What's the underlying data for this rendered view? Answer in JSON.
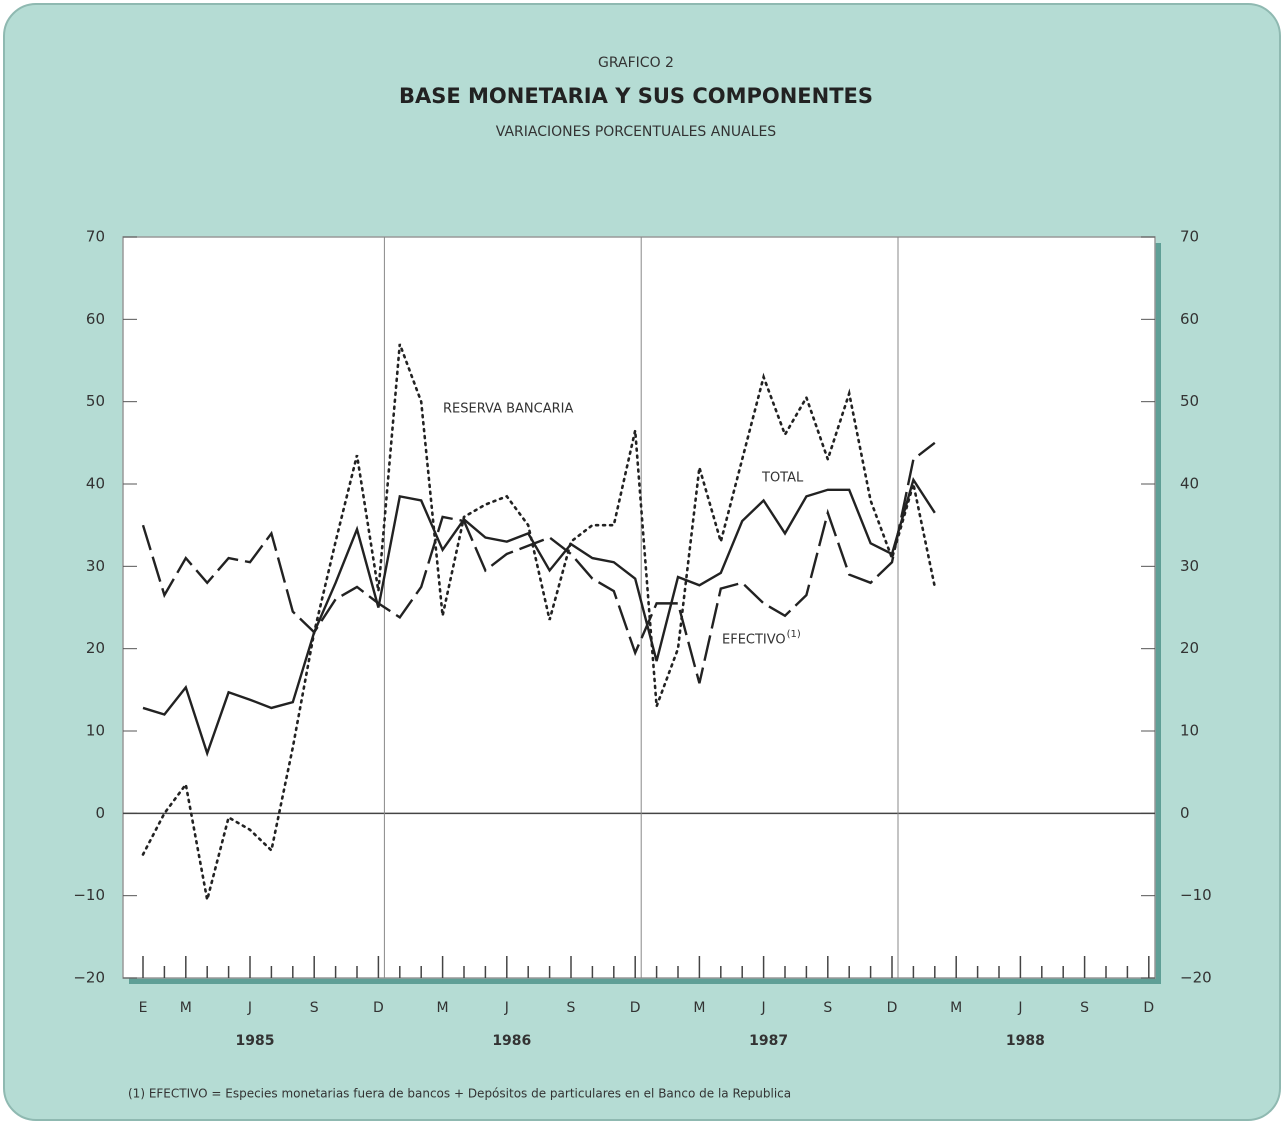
{
  "chart_data": {
    "type": "line",
    "supertitle": "GRAFICO 2",
    "title": "BASE MONETARIA Y SUS COMPONENTES",
    "subtitle": "VARIACIONES PORCENTUALES ANUALES",
    "categories": [
      "E",
      null,
      "M",
      null,
      null,
      "J",
      null,
      null,
      "S",
      null,
      null,
      "D",
      null,
      null,
      "M",
      null,
      null,
      "J",
      null,
      null,
      "S",
      null,
      null,
      "D",
      null,
      null,
      "M",
      null,
      null,
      "J",
      null,
      null,
      "S",
      null,
      null,
      "D",
      null,
      null,
      "M",
      null,
      null,
      "J",
      null,
      null,
      "S",
      null,
      null,
      "D"
    ],
    "year_labels": [
      "1985",
      "1986",
      "1987",
      "1988"
    ],
    "series": [
      {
        "name": "TOTAL",
        "color": "#222222",
        "style": "solid",
        "values": [
          12.8,
          12,
          15.3,
          7.3,
          14.7,
          13.8,
          12.8,
          13.5,
          22,
          28,
          34.5,
          25,
          38.5,
          38,
          32,
          35.7,
          33.5,
          33,
          34,
          29.5,
          32.7,
          31,
          30.5,
          28.5,
          18.5,
          28.7,
          27.7,
          29.2,
          35.5,
          38,
          34,
          38.5,
          39.3,
          39.3,
          32.8,
          31.5,
          40.5,
          36.5,
          null,
          null,
          null,
          null,
          null,
          null,
          null,
          null,
          null,
          null
        ]
      },
      {
        "name": "EFECTIVO",
        "color": "#222222",
        "style": "dashed",
        "values": [
          35,
          26.5,
          31,
          28,
          31,
          30.5,
          34,
          24.5,
          22,
          26,
          27.5,
          25.5,
          23.8,
          27.5,
          36,
          35.5,
          29.5,
          31.5,
          32.5,
          33.5,
          31.5,
          28.5,
          27,
          19.5,
          25.5,
          25.5,
          15.8,
          27.3,
          28,
          25.5,
          24,
          26.5,
          36.5,
          29,
          28,
          30.5,
          43,
          45,
          null,
          null,
          null,
          null,
          null,
          null,
          null,
          null,
          null,
          null
        ]
      },
      {
        "name": "RESERVA BANCARIA",
        "color": "#222222",
        "style": "dotted",
        "values": [
          -5,
          0,
          3.5,
          -10.5,
          -0.5,
          -2,
          -4.5,
          8,
          22,
          33,
          43.5,
          27,
          57,
          50,
          24,
          36,
          37.5,
          38.5,
          35,
          23.5,
          33,
          35,
          35,
          46.5,
          13,
          20,
          42,
          33,
          43,
          53,
          46,
          50.5,
          43,
          51,
          38,
          31,
          40,
          27.5,
          null,
          null,
          null,
          null,
          null,
          null,
          null,
          null,
          null,
          null
        ]
      }
    ],
    "note_marker": "(1)",
    "footnote": "(1)  EFECTIVO = Especies monetarias fuera de bancos + Depósitos de particulares en el Banco de la Republica",
    "ylim": [
      -20,
      70
    ],
    "yticks": [
      {
        "value": -20,
        "label": "−20"
      },
      {
        "value": -10,
        "label": "−10"
      },
      0,
      10,
      20,
      30,
      40,
      50,
      60,
      70
    ],
    "zero_line": true
  }
}
